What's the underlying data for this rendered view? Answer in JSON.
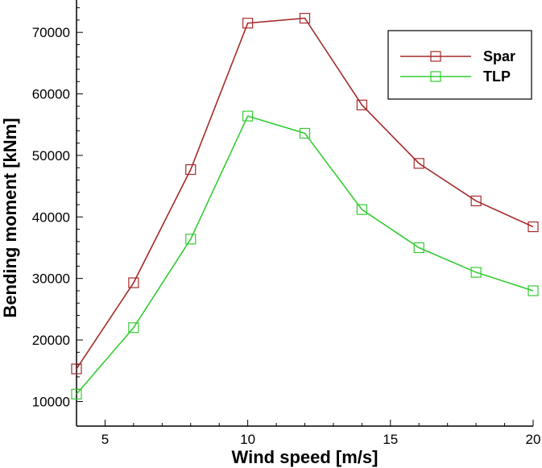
{
  "chart_data": {
    "type": "line",
    "title": "",
    "xlabel": "Wind speed [m/s]",
    "ylabel": "Bending moment [kNm]",
    "xlim": [
      4,
      20
    ],
    "ylim": [
      6000,
      75000
    ],
    "x_ticks": [
      5,
      10,
      15,
      20
    ],
    "y_ticks": [
      10000,
      20000,
      30000,
      40000,
      50000,
      60000,
      70000
    ],
    "grid": false,
    "legend_position": "top-right",
    "x": [
      4,
      6,
      8,
      10,
      12,
      14,
      16,
      18,
      20
    ],
    "series": [
      {
        "name": "Spar",
        "color": "#a52a2a",
        "marker": "open-square",
        "values": [
          15300,
          29300,
          47700,
          71500,
          72300,
          58200,
          48700,
          42600,
          38400
        ]
      },
      {
        "name": "TLP",
        "color": "#33cc33",
        "marker": "open-square",
        "values": [
          11200,
          22000,
          36400,
          56400,
          53600,
          41200,
          35000,
          31000,
          28000
        ]
      }
    ]
  }
}
